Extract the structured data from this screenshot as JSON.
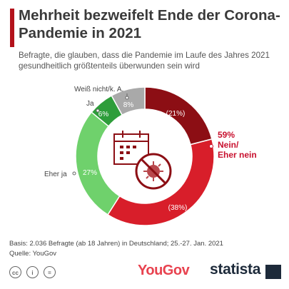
{
  "title": "Mehrheit bezweifelt Ende der Corona-Pandemie in 2021",
  "subtitle": "Befragte, die glauben, dass die Pandemie im Laufe des Jahres 2021 gesundheitlich größtenteils überwunden sein wird",
  "chart_data": {
    "type": "pie",
    "title": "Mehrheit bezweifelt Ende der Corona-Pandemie in 2021",
    "subtitle": "Befragte, die glauben, dass die Pandemie im Laufe des Jahres 2021 gesundheitlich größtenteils überwunden sein wird",
    "slices": [
      {
        "label": "(21%)",
        "value": 21,
        "color": "#8c0e14"
      },
      {
        "label": "(38%)",
        "value": 38,
        "color": "#d81e2a"
      },
      {
        "label": "Eher ja",
        "value": 27,
        "color": "#6fd16c"
      },
      {
        "label": "Ja",
        "value": 6,
        "color": "#2e9d3a"
      },
      {
        "label": "Weiß nicht/k. A.",
        "value": 8,
        "color": "#a9a9a9"
      }
    ],
    "slice_texts": [
      "(21%)",
      "(38%)",
      "27%",
      "6%",
      "8%"
    ],
    "callout": {
      "value": "59%",
      "label_line1": "Nein/",
      "label_line2": "Eher nein"
    }
  },
  "footer": {
    "basis": "Basis: 2.036 Befragte (ab 18 Jahren) in Deutschland; 25.-27. Jan. 2021",
    "source": "Quelle: YouGov"
  },
  "license_icons": [
    "cc",
    "i",
    "="
  ],
  "logos": {
    "yougov": "YouGov",
    "statista": "statista"
  },
  "icon": "calendar-virus-prohibited-icon"
}
